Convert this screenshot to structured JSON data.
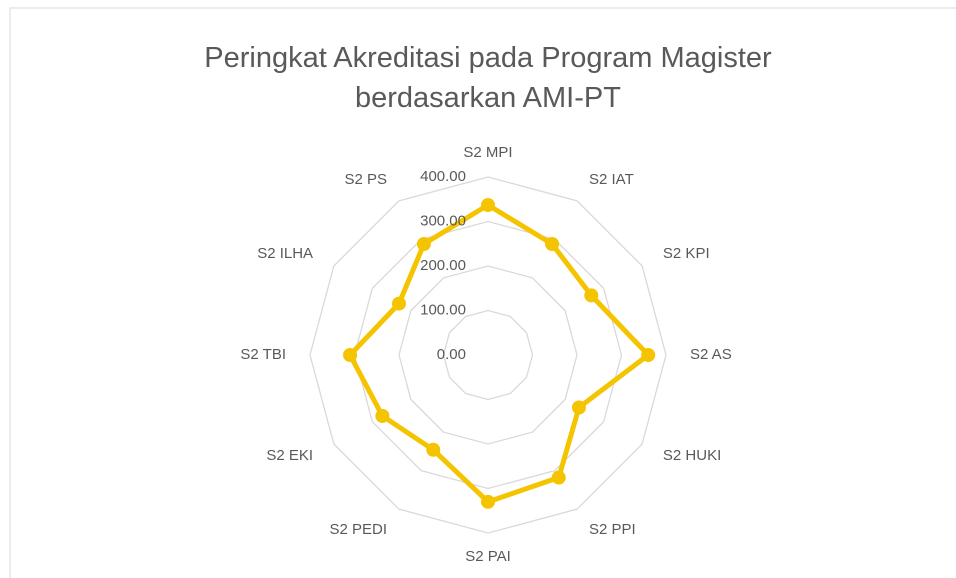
{
  "chart_data": {
    "type": "radar",
    "title": "Peringkat Akreditasi pada Program Magister berdasarkan AMI-PT",
    "categories": [
      "S2 MPI",
      "S2 IAT",
      "S2 KPI",
      "S2 AS",
      "S2 HUKI",
      "S2 PPI",
      "S2 PAI",
      "S2 PEDI",
      "S2 EKI",
      "S2 TBI",
      "S2 ILHA",
      "S2 PS"
    ],
    "values": [
      337,
      288,
      268,
      360,
      236,
      318,
      330,
      246,
      274,
      310,
      231,
      288
    ],
    "color": "#f5c400",
    "ylim": [
      0,
      400
    ],
    "yticks": [
      {
        "value": 0,
        "label": "0.00"
      },
      {
        "value": 100,
        "label": "100.00"
      },
      {
        "value": 200,
        "label": "200.00"
      },
      {
        "value": 300,
        "label": "300.00"
      },
      {
        "value": 400,
        "label": "400.00"
      }
    ],
    "grid": true
  }
}
